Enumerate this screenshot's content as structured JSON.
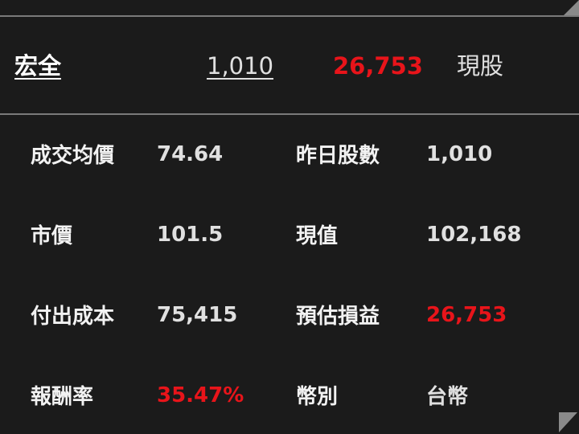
{
  "header": {
    "name": "宏全",
    "shares": "1,010",
    "profit": "26,753",
    "type": "現股"
  },
  "details": [
    {
      "label": "成交均價",
      "value": "74.64",
      "label2": "昨日股數",
      "value2": "1,010"
    },
    {
      "label": "市價",
      "value": "101.5",
      "label2": "現值",
      "value2": "102,168"
    },
    {
      "label": "付出成本",
      "value": "75,415",
      "label2": "預估損益",
      "value2": "26,753"
    },
    {
      "label": "報酬率",
      "value": "35.47%",
      "label2": "幣別",
      "value2": "台幣"
    }
  ],
  "colors": {
    "background": "#1b1b1b",
    "gain": "#e8141a",
    "text": "#e8e8e8"
  }
}
